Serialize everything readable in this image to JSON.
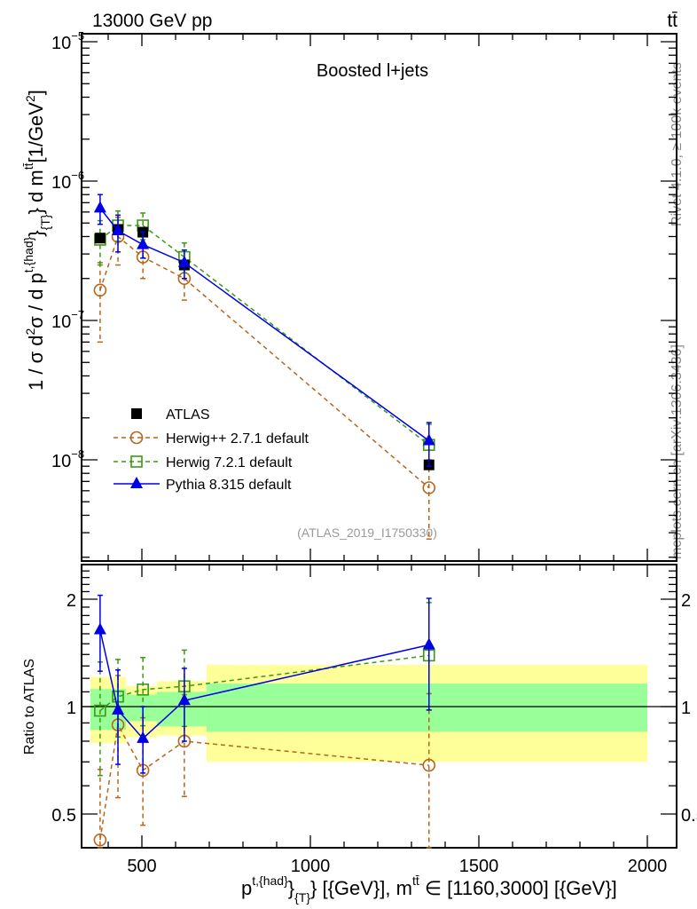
{
  "header": {
    "left": "13000 GeV pp",
    "right": "tt̄"
  },
  "side": {
    "rivet": "Rivet 4.1.0, ≥ 100k events",
    "mcplots": "mcplots.cern.ch [arXiv:1306.3436]"
  },
  "analysis_id": "(ATLAS_2019_I1750330)",
  "chart_data": [
    {
      "type": "line",
      "title": "Boosted l+jets",
      "ylabel_parts": [
        "1 / σ d",
        "2",
        "σ / d p",
        "t,{had}",
        "}",
        "{T}",
        "} d m",
        "tt̄",
        "[1/GeV",
        "2",
        "]"
      ],
      "yscale": "log",
      "ylim": [
        1.9e-09,
        1.15e-05
      ],
      "xlim": [
        321,
        2087
      ],
      "yticks": [
        {
          "v": 1e-08,
          "base": "10",
          "exp": "−8"
        },
        {
          "v": 1e-07,
          "base": "10",
          "exp": "−7"
        },
        {
          "v": 1e-06,
          "base": "10",
          "exp": "−6"
        },
        {
          "v": 1e-05,
          "base": "10",
          "exp": "−5"
        }
      ],
      "legend_position": "lower-left",
      "x": [
        376,
        429,
        503,
        626,
        1352
      ],
      "series": [
        {
          "name": "ATLAS",
          "color": "#000000",
          "marker": "square-filled",
          "dash": "",
          "line": false,
          "values": [
            3.9e-07,
            4.5e-07,
            4.3e-07,
            2.5e-07,
            9.2e-09
          ]
        },
        {
          "name": "Herwig++ 2.7.1 default",
          "color": "#b8641a",
          "marker": "circle-open",
          "dash": "5,4",
          "line": true,
          "values": [
            1.65e-07,
            4e-07,
            2.85e-07,
            2e-07,
            6.3e-09
          ],
          "err_lo": [
            7e-08,
            2.5e-07,
            2e-07,
            1.4e-07,
            2.7e-09
          ],
          "err_hi": [
            2.6e-07,
            5.5e-07,
            4e-07,
            2.7e-07,
            1e-08
          ]
        },
        {
          "name": "Herwig 7.2.1 default",
          "color": "#3a9a12",
          "marker": "square-open",
          "dash": "5,4",
          "line": true,
          "values": [
            3.8e-07,
            4.8e-07,
            4.8e-07,
            2.85e-07,
            1.28e-08
          ],
          "err_lo": [
            2.5e-07,
            3.7e-07,
            3.8e-07,
            2.2e-07,
            9e-09
          ],
          "err_hi": [
            5.2e-07,
            6.1e-07,
            5.9e-07,
            3.6e-07,
            1.8e-08
          ]
        },
        {
          "name": "Pythia 8.315 default",
          "color": "#0000e6",
          "marker": "triangle-filled",
          "dash": "",
          "line": true,
          "values": [
            6.4e-07,
            4.4e-07,
            3.5e-07,
            2.6e-07,
            1.37e-08
          ],
          "err_lo": [
            4.9e-07,
            3.1e-07,
            2.8e-07,
            2e-07,
            9e-09
          ],
          "err_hi": [
            8e-07,
            5.7e-07,
            4.3e-07,
            3.2e-07,
            1.85e-08
          ]
        }
      ]
    },
    {
      "type": "line",
      "ylabel": "Ratio to ATLAS",
      "xlabel_parts": [
        "p",
        "t,{had}",
        "}",
        "{T}",
        "} [{GeV}], m",
        "tt̄",
        " ∈ [1160,3000] [{GeV}]"
      ],
      "yscale": "log",
      "ylim": [
        0.4,
        2.5
      ],
      "yticks": [
        "0.5",
        "1",
        "2"
      ],
      "xticks": [
        "500",
        "1000",
        "1500",
        "2000"
      ],
      "bands": {
        "edges": [
          345,
          453,
          545,
          692,
          2000
        ],
        "yellow_lo": [
          0.79,
          0.82,
          0.83,
          0.7
        ],
        "yellow_hi": [
          1.21,
          1.14,
          1.18,
          1.31
        ],
        "green_lo": [
          0.86,
          0.91,
          0.88,
          0.85
        ],
        "green_hi": [
          1.12,
          1.08,
          1.1,
          1.16
        ],
        "yellow": "#ffff99",
        "green": "#99ff99"
      }
    }
  ]
}
